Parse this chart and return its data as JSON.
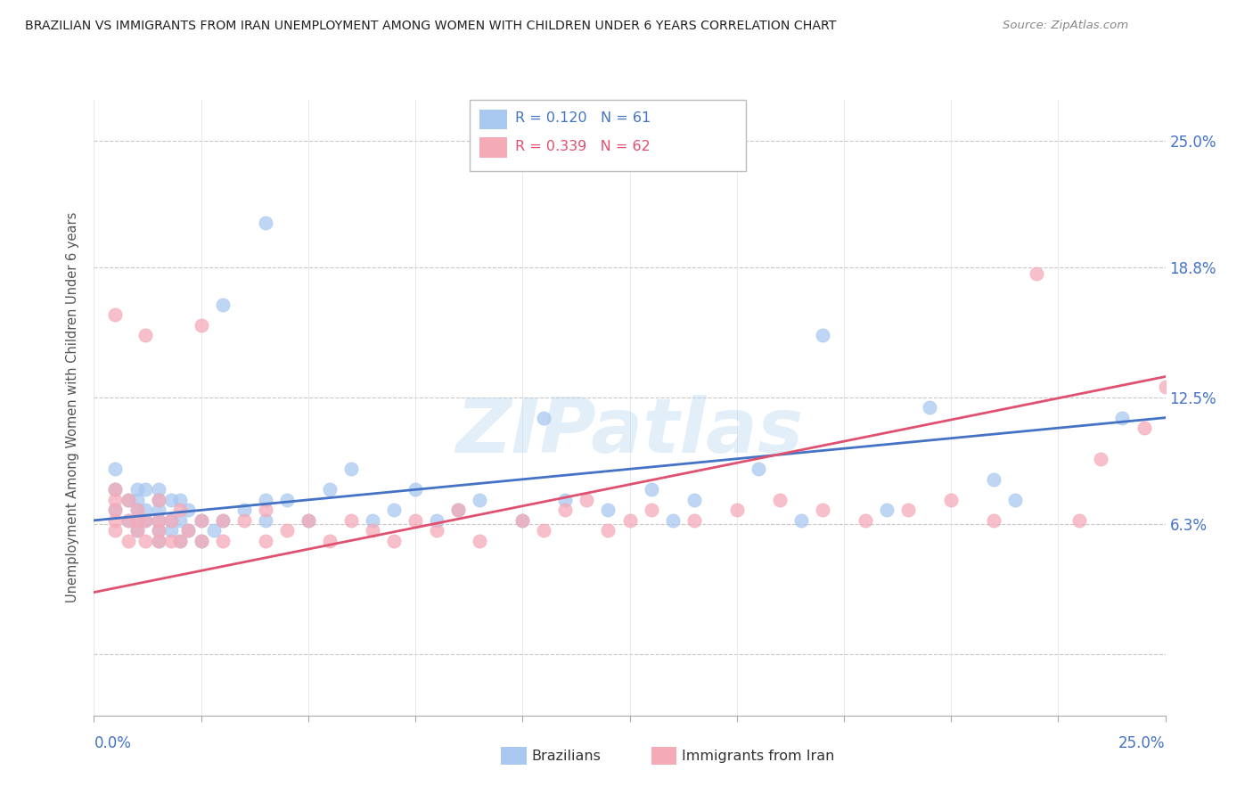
{
  "title": "BRAZILIAN VS IMMIGRANTS FROM IRAN UNEMPLOYMENT AMONG WOMEN WITH CHILDREN UNDER 6 YEARS CORRELATION CHART",
  "source": "Source: ZipAtlas.com",
  "ylabel": "Unemployment Among Women with Children Under 6 years",
  "color_brazil": "#a8c8f0",
  "color_iran": "#f5aab8",
  "color_brazil_line": "#4472c4",
  "color_iran_line": "#e05070",
  "color_ytick": "#4472c4",
  "color_xtick": "#4472c4",
  "R_brazil": 0.12,
  "N_brazil": 61,
  "R_iran": 0.339,
  "N_iran": 62,
  "xlim": [
    0.0,
    0.25
  ],
  "ylim": [
    -0.03,
    0.27
  ],
  "y_ticks": [
    0.0,
    0.063,
    0.125,
    0.188,
    0.25
  ],
  "y_tick_labels": [
    "",
    "6.3%",
    "12.5%",
    "18.8%",
    "25.0%"
  ],
  "brazil_legend": "Brazilians",
  "iran_legend": "Immigrants from Iran",
  "brazil_x": [
    0.005,
    0.005,
    0.005,
    0.008,
    0.008,
    0.01,
    0.01,
    0.01,
    0.01,
    0.01,
    0.012,
    0.012,
    0.012,
    0.015,
    0.015,
    0.015,
    0.015,
    0.015,
    0.015,
    0.018,
    0.018,
    0.018,
    0.02,
    0.02,
    0.02,
    0.022,
    0.022,
    0.025,
    0.025,
    0.028,
    0.03,
    0.03,
    0.035,
    0.04,
    0.04,
    0.04,
    0.045,
    0.05,
    0.055,
    0.06,
    0.065,
    0.07,
    0.075,
    0.08,
    0.085,
    0.09,
    0.1,
    0.105,
    0.11,
    0.12,
    0.13,
    0.135,
    0.14,
    0.155,
    0.165,
    0.17,
    0.185,
    0.195,
    0.21,
    0.215,
    0.24
  ],
  "brazil_y": [
    0.07,
    0.08,
    0.09,
    0.065,
    0.075,
    0.06,
    0.065,
    0.07,
    0.075,
    0.08,
    0.065,
    0.07,
    0.08,
    0.055,
    0.06,
    0.065,
    0.07,
    0.075,
    0.08,
    0.06,
    0.065,
    0.075,
    0.055,
    0.065,
    0.075,
    0.06,
    0.07,
    0.055,
    0.065,
    0.06,
    0.065,
    0.17,
    0.07,
    0.065,
    0.075,
    0.21,
    0.075,
    0.065,
    0.08,
    0.09,
    0.065,
    0.07,
    0.08,
    0.065,
    0.07,
    0.075,
    0.065,
    0.115,
    0.075,
    0.07,
    0.08,
    0.065,
    0.075,
    0.09,
    0.065,
    0.155,
    0.07,
    0.12,
    0.085,
    0.075,
    0.115
  ],
  "iran_x": [
    0.005,
    0.005,
    0.005,
    0.005,
    0.005,
    0.005,
    0.008,
    0.008,
    0.008,
    0.01,
    0.01,
    0.01,
    0.012,
    0.012,
    0.012,
    0.015,
    0.015,
    0.015,
    0.015,
    0.018,
    0.018,
    0.02,
    0.02,
    0.022,
    0.025,
    0.025,
    0.025,
    0.03,
    0.03,
    0.035,
    0.04,
    0.04,
    0.045,
    0.05,
    0.055,
    0.06,
    0.065,
    0.07,
    0.075,
    0.08,
    0.085,
    0.09,
    0.1,
    0.105,
    0.11,
    0.115,
    0.12,
    0.125,
    0.13,
    0.14,
    0.15,
    0.16,
    0.17,
    0.18,
    0.19,
    0.2,
    0.21,
    0.22,
    0.23,
    0.235,
    0.245,
    0.25
  ],
  "iran_y": [
    0.06,
    0.065,
    0.07,
    0.075,
    0.08,
    0.165,
    0.055,
    0.065,
    0.075,
    0.06,
    0.065,
    0.07,
    0.055,
    0.065,
    0.155,
    0.055,
    0.06,
    0.065,
    0.075,
    0.055,
    0.065,
    0.055,
    0.07,
    0.06,
    0.055,
    0.065,
    0.16,
    0.055,
    0.065,
    0.065,
    0.055,
    0.07,
    0.06,
    0.065,
    0.055,
    0.065,
    0.06,
    0.055,
    0.065,
    0.06,
    0.07,
    0.055,
    0.065,
    0.06,
    0.07,
    0.075,
    0.06,
    0.065,
    0.07,
    0.065,
    0.07,
    0.075,
    0.07,
    0.065,
    0.07,
    0.075,
    0.065,
    0.185,
    0.065,
    0.095,
    0.11,
    0.13
  ]
}
